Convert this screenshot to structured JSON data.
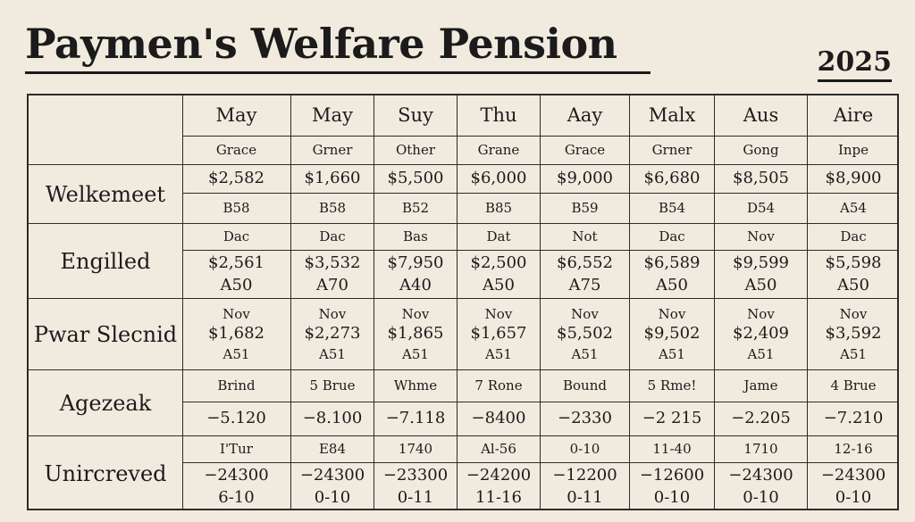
{
  "header": {
    "title": "Paymen's Welfare Pension",
    "year": "2025"
  },
  "columns": [
    "May",
    "May",
    "Suy",
    "Thu",
    "Aay",
    "Malx",
    "Aus",
    "Aire"
  ],
  "row_labels": [
    "Welkemeet",
    "Engilled",
    "Pwar Slecnid",
    "Agezeak",
    "Unircreved"
  ],
  "bands": {
    "grace": [
      "Grace",
      "Grner",
      "Other",
      "Grane",
      "Grace",
      "Grner",
      "Gong",
      "Inpe"
    ],
    "amount1": [
      "$2,582",
      "$1,660",
      "$5,500",
      "$6,000",
      "$9,000",
      "$6,680",
      "$8,505",
      "$8,900"
    ],
    "code1": [
      "B58",
      "B58",
      "B52",
      "B85",
      "B59",
      "B54",
      "D54",
      "A54"
    ],
    "month2": [
      "Dac",
      "Dac",
      "Bas",
      "Dat",
      "Not",
      "Dac",
      "Nov",
      "Dac"
    ],
    "amount2": [
      "$2,561",
      "$3,532",
      "$7,950",
      "$2,500",
      "$6,552",
      "$6,589",
      "$9,599",
      "$5,598"
    ],
    "code2": [
      "A50",
      "A70",
      "A40",
      "A50",
      "A75",
      "A50",
      "A50",
      "A50"
    ],
    "month3": [
      "Nov",
      "Nov",
      "Nov",
      "Nov",
      "Nov",
      "Nov",
      "Nov",
      "Nov"
    ],
    "amount3": [
      "$1,682",
      "$2,273",
      "$1,865",
      "$1,657",
      "$5,502",
      "$9,502",
      "$2,409",
      "$3,592"
    ],
    "code3": [
      "A51",
      "A51",
      "A51",
      "A51",
      "A51",
      "A51",
      "A51",
      "A51"
    ],
    "bound": [
      "Brind",
      "5 Brue",
      "Whme",
      "7 Rone",
      "Bound",
      "5 Rme!",
      "Jame",
      "4 Brue"
    ],
    "neg1": [
      "−5.120",
      "−8.100",
      "−7.118",
      "−8400",
      "−2330",
      "−2 215",
      "−2.205",
      "−7.210"
    ],
    "range1": [
      "I'Tur",
      "E84",
      "1740",
      "Al-56",
      "0-10",
      "11-40",
      "1710",
      "12-16"
    ],
    "neg2": [
      "−24300",
      "−24300",
      "−23300",
      "−24200",
      "−12200",
      "−12600",
      "−24300",
      "−24300"
    ],
    "range2": [
      "6-10",
      "0-10",
      "0-11",
      "11-16",
      "0-11",
      "0-10",
      "0-10",
      "0-10"
    ]
  }
}
